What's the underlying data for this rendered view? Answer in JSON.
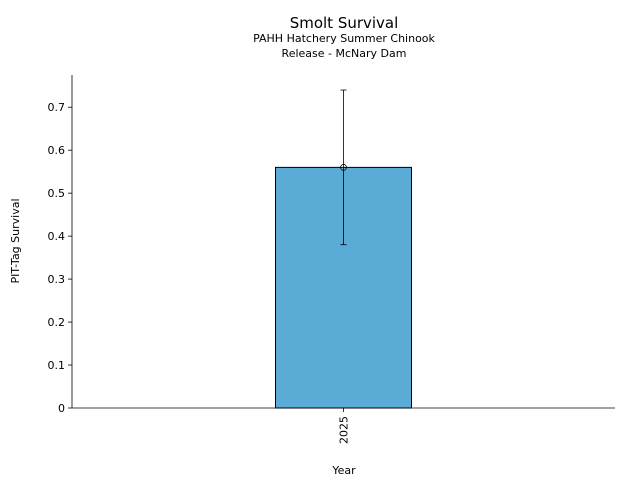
{
  "chart_data": {
    "type": "bar",
    "title": "Smolt Survival",
    "subtitle": [
      "PAHH Hatchery Summer Chinook",
      "Release - McNary Dam"
    ],
    "xlabel": "Year",
    "ylabel": "PIT-Tag Survival",
    "categories": [
      "2025"
    ],
    "values": [
      0.56
    ],
    "error_low": [
      0.38
    ],
    "error_high": [
      0.74
    ],
    "ylim": [
      0,
      0.775
    ],
    "yticks": [
      0,
      0.1,
      0.2,
      0.3,
      0.4,
      0.5,
      0.6,
      0.7
    ],
    "ytick_labels": [
      "0",
      "0.1",
      "0.2",
      "0.3",
      "0.4",
      "0.5",
      "0.6",
      "0.7"
    ],
    "grid": false,
    "bar_color": "#5aacd6",
    "edge_color": "#000000"
  }
}
